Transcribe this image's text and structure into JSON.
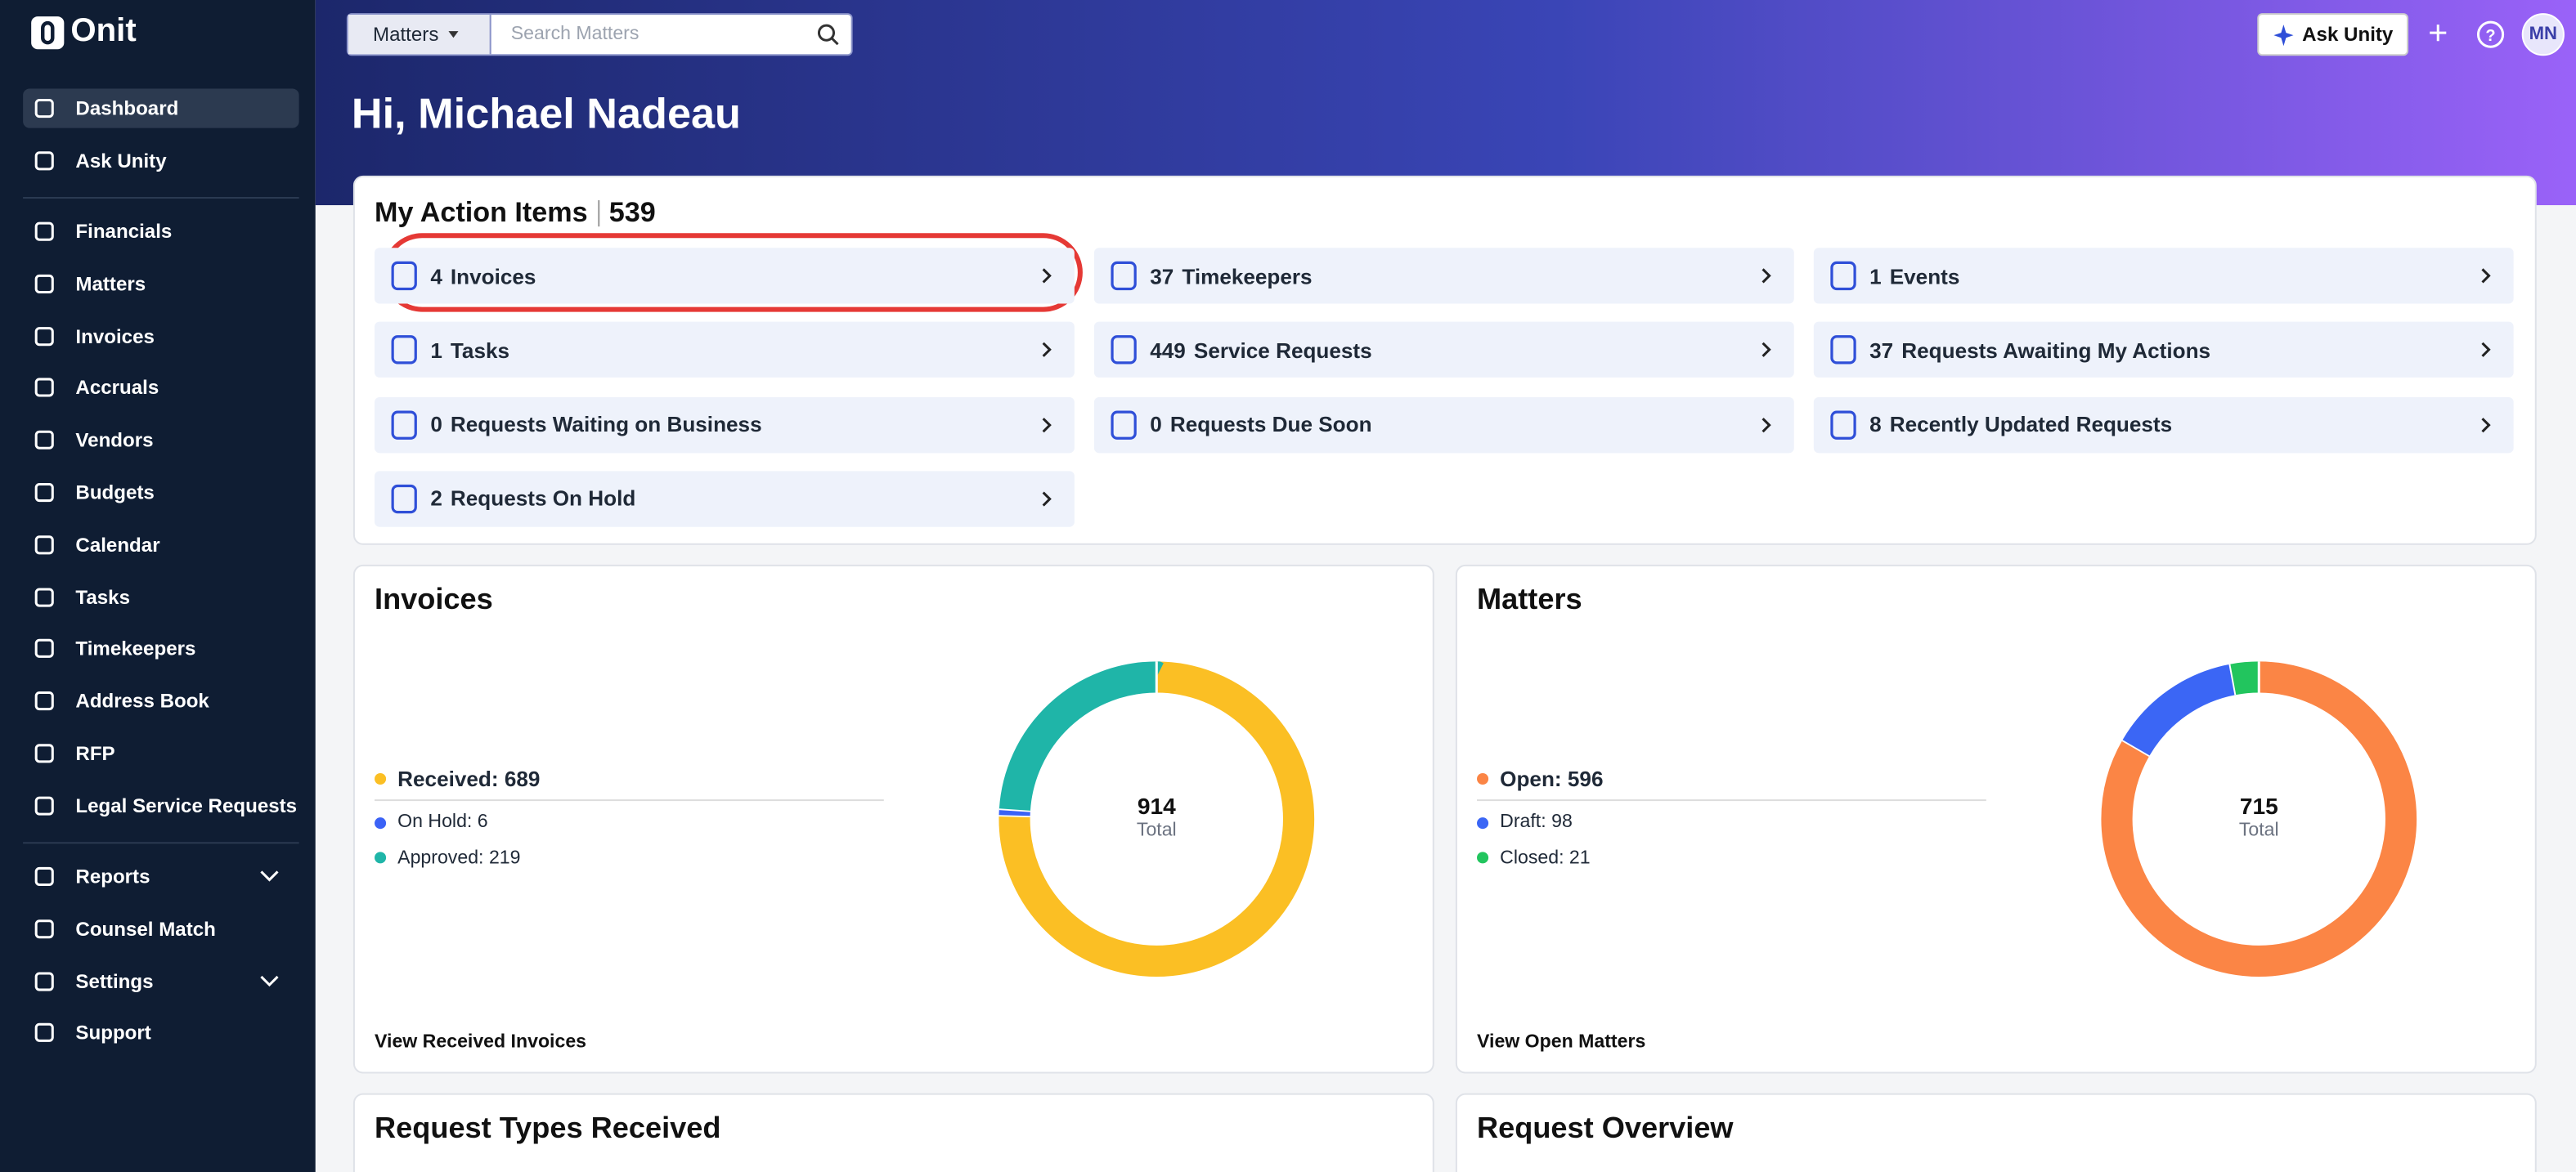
{
  "app": {
    "logo": "Onit"
  },
  "topbar": {
    "scope": "Matters",
    "search_placeholder": "Search Matters",
    "ask_unity": "Ask Unity",
    "avatar": "MN"
  },
  "sidebar": {
    "top": [
      "Dashboard",
      "Ask Unity"
    ],
    "main": [
      "Financials",
      "Matters",
      "Invoices",
      "Accruals",
      "Vendors",
      "Budgets",
      "Calendar",
      "Tasks",
      "Timekeepers",
      "Address Book",
      "RFP",
      "Legal Service Requests"
    ],
    "bottom": [
      "Reports",
      "Counsel Match",
      "Settings",
      "Support"
    ]
  },
  "greeting": "Hi, Michael Nadeau",
  "action_items": {
    "title": "My Action Items",
    "total": 539,
    "items": [
      {
        "count": 4,
        "label": "Invoices"
      },
      {
        "count": 37,
        "label": "Timekeepers"
      },
      {
        "count": 1,
        "label": "Events"
      },
      {
        "count": 1,
        "label": "Tasks"
      },
      {
        "count": 449,
        "label": "Service Requests"
      },
      {
        "count": 37,
        "label": "Requests Awaiting My Actions"
      },
      {
        "count": 0,
        "label": "Requests Waiting on Business"
      },
      {
        "count": 0,
        "label": "Requests Due Soon"
      },
      {
        "count": 8,
        "label": "Recently Updated Requests"
      },
      {
        "count": 2,
        "label": "Requests On Hold"
      }
    ]
  },
  "cards": [
    {
      "title": "Invoices",
      "total": 914,
      "total_label": "Total",
      "link": "View Received Invoices",
      "segments": [
        {
          "label": "Received:",
          "value": 689,
          "color": "#fbbf24"
        },
        {
          "label": "On Hold:",
          "value": 6,
          "color": "#3b62f6"
        },
        {
          "label": "Approved:",
          "value": 219,
          "color": "#1fb5a8"
        }
      ]
    },
    {
      "title": "Matters",
      "total": 715,
      "total_label": "Total",
      "link": "View Open Matters",
      "segments": [
        {
          "label": "Open:",
          "value": 596,
          "color": "#fb8545"
        },
        {
          "label": "Draft:",
          "value": 98,
          "color": "#3b66f5"
        },
        {
          "label": "Closed:",
          "value": 21,
          "color": "#22c55e"
        }
      ]
    }
  ],
  "lower_cards": [
    "Request Types Received",
    "Request Overview"
  ]
}
